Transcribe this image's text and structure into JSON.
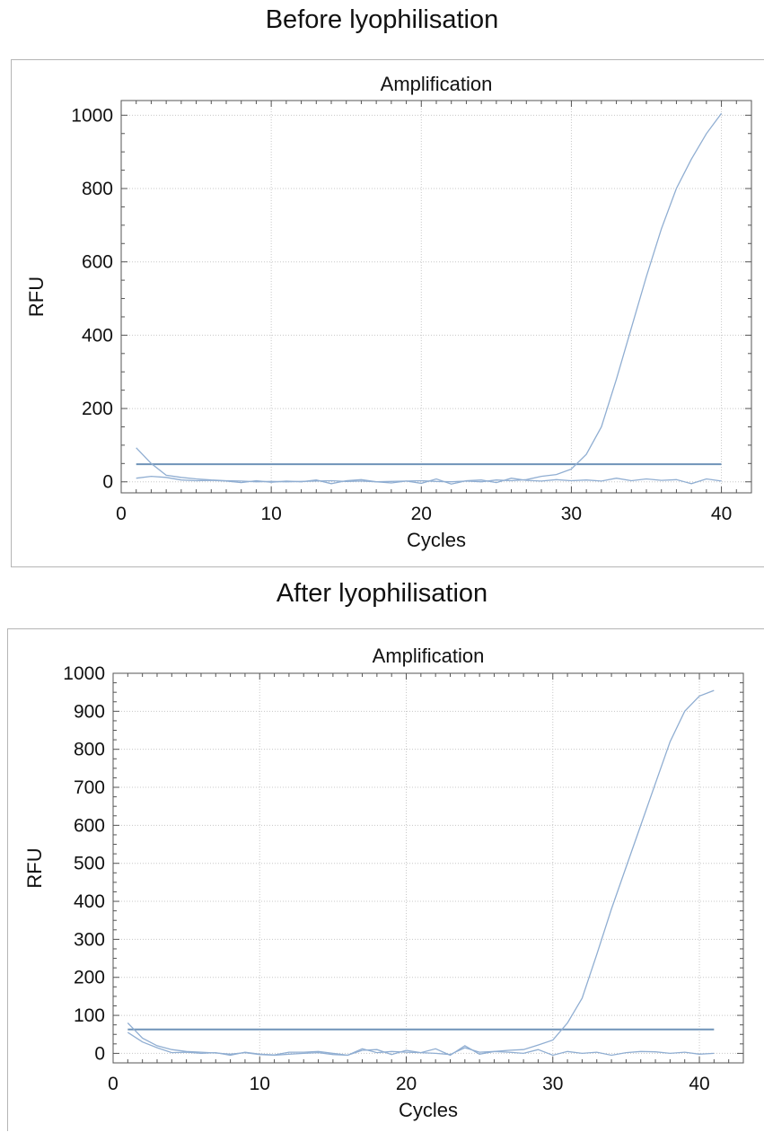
{
  "headings": {
    "top": "Before lyophilisation",
    "bottom": "After lyophilisation"
  },
  "colors": {
    "curve": "#90aed2",
    "threshold": "#6f93b8",
    "grid": "#c8c8c8",
    "axis": "#555555"
  },
  "chart_data": [
    {
      "type": "line",
      "title": "Amplification",
      "xlabel": "Cycles",
      "ylabel": "RFU",
      "xlim": [
        0,
        42
      ],
      "ylim": [
        -30,
        1040
      ],
      "xticks": [
        0,
        10,
        20,
        30,
        40
      ],
      "yticks": [
        0,
        200,
        400,
        600,
        800,
        1000
      ],
      "grid": true,
      "threshold": {
        "value": 48,
        "x": [
          1,
          40
        ]
      },
      "series": [
        {
          "x": [
            1,
            2,
            3,
            4,
            5,
            6,
            7,
            8,
            9,
            10,
            11,
            12,
            13,
            14,
            15,
            16,
            17,
            18,
            19,
            20,
            21,
            22,
            23,
            24,
            25,
            26,
            27,
            28,
            29,
            30,
            31,
            32,
            33,
            34,
            35,
            36,
            37,
            38,
            39,
            40
          ],
          "values": [
            93,
            50,
            18,
            12,
            8,
            5,
            3,
            2,
            0,
            1,
            0,
            1,
            2,
            3,
            1,
            2,
            0,
            1,
            2,
            3,
            1,
            0,
            2,
            0,
            5,
            3,
            6,
            15,
            20,
            35,
            75,
            150,
            280,
            420,
            560,
            690,
            800,
            880,
            950,
            1005
          ]
        },
        {
          "x": [
            1,
            2,
            3,
            4,
            5,
            6,
            7,
            8,
            9,
            10,
            11,
            12,
            13,
            14,
            15,
            16,
            17,
            18,
            19,
            20,
            21,
            22,
            23,
            24,
            25,
            26,
            27,
            28,
            29,
            30,
            31,
            32,
            33,
            34,
            35,
            36,
            37,
            38,
            39,
            40
          ],
          "values": [
            10,
            15,
            12,
            5,
            3,
            4,
            2,
            -2,
            3,
            -1,
            2,
            0,
            5,
            -5,
            3,
            6,
            0,
            -3,
            2,
            -4,
            8,
            -6,
            3,
            5,
            -2,
            10,
            4,
            2,
            6,
            3,
            5,
            2,
            10,
            3,
            8,
            4,
            6,
            -5,
            8,
            2
          ]
        }
      ]
    },
    {
      "type": "line",
      "title": "Amplification",
      "xlabel": "Cycles",
      "ylabel": "RFU",
      "xlim": [
        0,
        43
      ],
      "ylim": [
        -25,
        1000
      ],
      "xticks": [
        0,
        10,
        20,
        30,
        40
      ],
      "yticks": [
        0,
        100,
        200,
        300,
        400,
        500,
        600,
        700,
        800,
        900,
        1000
      ],
      "grid": true,
      "threshold": {
        "value": 63,
        "x": [
          1,
          41
        ]
      },
      "series": [
        {
          "x": [
            1,
            2,
            3,
            4,
            5,
            6,
            7,
            8,
            9,
            10,
            11,
            12,
            13,
            14,
            15,
            16,
            17,
            18,
            19,
            20,
            21,
            22,
            23,
            24,
            25,
            26,
            27,
            28,
            29,
            30,
            31,
            32,
            33,
            34,
            35,
            36,
            37,
            38,
            39,
            40,
            41
          ],
          "values": [
            80,
            40,
            20,
            10,
            5,
            3,
            1,
            -2,
            2,
            -3,
            -5,
            -2,
            0,
            2,
            -3,
            -5,
            12,
            2,
            5,
            3,
            2,
            0,
            -3,
            15,
            3,
            5,
            8,
            10,
            22,
            35,
            80,
            145,
            260,
            380,
            490,
            600,
            710,
            820,
            900,
            940,
            955
          ]
        },
        {
          "x": [
            1,
            2,
            3,
            4,
            5,
            6,
            7,
            8,
            9,
            10,
            11,
            12,
            13,
            14,
            15,
            16,
            17,
            18,
            19,
            20,
            21,
            22,
            23,
            24,
            25,
            26,
            27,
            28,
            29,
            30,
            31,
            32,
            33,
            34,
            35,
            36,
            37,
            38,
            39,
            40,
            41
          ],
          "values": [
            55,
            30,
            15,
            2,
            3,
            0,
            2,
            -5,
            3,
            -2,
            -4,
            3,
            3,
            5,
            0,
            -5,
            8,
            10,
            -3,
            8,
            2,
            12,
            -5,
            20,
            -2,
            5,
            3,
            0,
            10,
            -5,
            5,
            0,
            3,
            -5,
            2,
            5,
            4,
            0,
            3,
            -2,
            0
          ]
        }
      ]
    }
  ]
}
